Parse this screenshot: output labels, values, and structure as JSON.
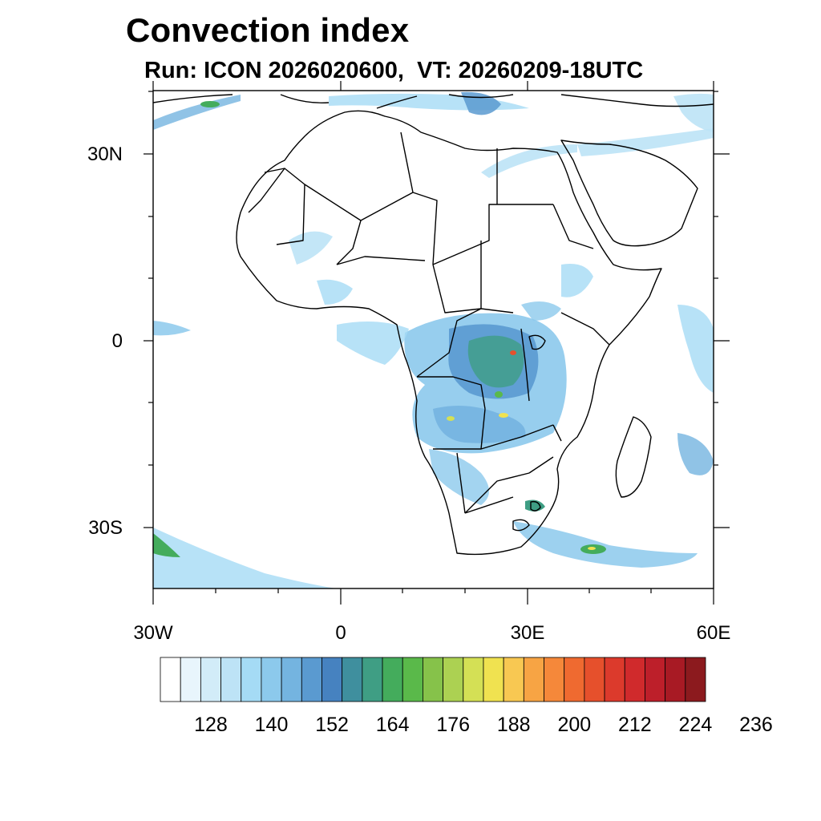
{
  "title": "Convection index",
  "subtitle": "Run: ICON 2026020600,  VT: 20260209-18UTC",
  "map": {
    "extent": {
      "lon": [
        -30,
        60
      ],
      "lat": [
        -40,
        40
      ]
    },
    "lat_ticks": [
      {
        "value": 30,
        "label": "30N"
      },
      {
        "value": 0,
        "label": "0"
      },
      {
        "value": -30,
        "label": "30S"
      }
    ],
    "lon_ticks": [
      {
        "value": -30,
        "label": "30W"
      },
      {
        "value": 0,
        "label": "0"
      },
      {
        "value": 30,
        "label": "30E"
      },
      {
        "value": 60,
        "label": "60E"
      }
    ]
  },
  "colorbar": {
    "colors": [
      "#ffffff",
      "#e8f5fc",
      "#d2ecf8",
      "#bde3f6",
      "#a5dbf5",
      "#8cc9ec",
      "#74b4e0",
      "#5a9ad0",
      "#4682c0",
      "#3f8f9e",
      "#3f9e84",
      "#44ac5c",
      "#5ab94a",
      "#86c24a",
      "#acd152",
      "#d4e055",
      "#f0e250",
      "#f8c852",
      "#f7a444",
      "#f5883a",
      "#ef6a30",
      "#e6502c",
      "#dc3a2c",
      "#d02a2c",
      "#bd1f2a",
      "#a81a24",
      "#8c1a1e"
    ],
    "labels": [
      "128",
      "140",
      "152",
      "164",
      "176",
      "188",
      "200",
      "212",
      "224",
      "236"
    ]
  }
}
